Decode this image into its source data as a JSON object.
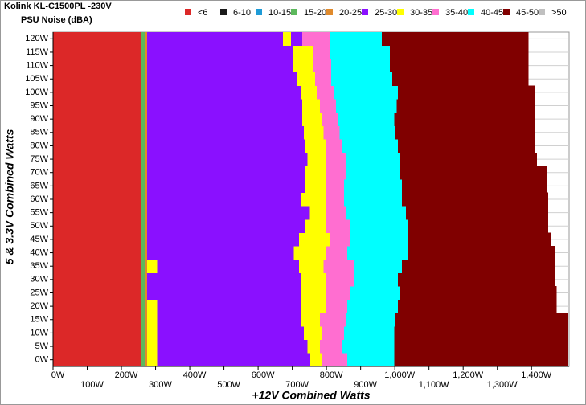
{
  "chart_data": {
    "type": "heatmap",
    "title": "Kolink KL-C1500PL -230V",
    "subtitle": "PSU Noise (dBA)",
    "xlabel": "+12V Combined Watts",
    "ylabel": "5 & 3.3V Combined Watts",
    "legend": [
      {
        "name": "<6",
        "color": "#dc2828"
      },
      {
        "name": "6-10",
        "color": "#1a1a1a"
      },
      {
        "name": "10-15",
        "color": "#1e9bd7"
      },
      {
        "name": "15-20",
        "color": "#5cb85c"
      },
      {
        "name": "20-25",
        "color": "#e08a2c"
      },
      {
        "name": "25-30",
        "color": "#8a10ff"
      },
      {
        "name": "30-35",
        "color": "#ffff00"
      },
      {
        "name": "35-40",
        "color": "#ff6ed0"
      },
      {
        "name": "40-45",
        "color": "#00ffff"
      },
      {
        "name": "45-50",
        "color": "#800000"
      },
      {
        "name": ">50",
        "color": "#c0c0c0"
      }
    ],
    "xlim": [
      0,
      1510
    ],
    "xticks": [
      {
        "value": 0,
        "label": "0W"
      },
      {
        "value": 100,
        "label": "100W"
      },
      {
        "value": 200,
        "label": "200W"
      },
      {
        "value": 300,
        "label": "300W"
      },
      {
        "value": 400,
        "label": "400W"
      },
      {
        "value": 500,
        "label": "500W"
      },
      {
        "value": 600,
        "label": "600W"
      },
      {
        "value": 700,
        "label": "700W"
      },
      {
        "value": 800,
        "label": "800W"
      },
      {
        "value": 900,
        "label": "900W"
      },
      {
        "value": 1000,
        "label": "1,000W"
      },
      {
        "value": 1100,
        "label": "1,100W"
      },
      {
        "value": 1200,
        "label": "1,200W"
      },
      {
        "value": 1300,
        "label": "1,300W"
      },
      {
        "value": 1400,
        "label": "1,400W"
      }
    ],
    "categories": [
      "0W",
      "5W",
      "10W",
      "15W",
      "20W",
      "25W",
      "30W",
      "35W",
      "40W",
      "45W",
      "50W",
      "55W",
      "60W",
      "65W",
      "70W",
      "75W",
      "80W",
      "85W",
      "90W",
      "95W",
      "100W",
      "105W",
      "110W",
      "115W",
      "120W"
    ],
    "rows": [
      {
        "zones": [
          "<6",
          "15-20",
          "20-25",
          "30-35",
          "25-30",
          "30-35",
          "35-40",
          "40-45",
          "45-50"
        ],
        "ends": [
          259,
          271,
          275,
          304,
          753,
          786,
          861,
          998,
          1506
        ]
      },
      {
        "zones": [
          "<6",
          "15-20",
          "20-25",
          "30-35",
          "25-30",
          "30-35",
          "35-40",
          "40-45",
          "45-50"
        ],
        "ends": [
          259,
          271,
          275,
          304,
          744,
          781,
          847,
          998,
          1506
        ]
      },
      {
        "zones": [
          "<6",
          "15-20",
          "20-25",
          "30-35",
          "25-30",
          "30-35",
          "35-40",
          "40-45",
          "45-50"
        ],
        "ends": [
          259,
          271,
          275,
          304,
          734,
          786,
          852,
          998,
          1506
        ]
      },
      {
        "zones": [
          "<6",
          "15-20",
          "20-25",
          "30-35",
          "25-30",
          "30-35",
          "35-40",
          "40-45",
          "45-50"
        ],
        "ends": [
          259,
          271,
          275,
          304,
          727,
          781,
          856,
          1002,
          1506
        ]
      },
      {
        "zones": [
          "<6",
          "15-20",
          "20-25",
          "30-35",
          "25-30",
          "30-35",
          "35-40",
          "40-45",
          "45-50"
        ],
        "ends": [
          259,
          271,
          275,
          304,
          727,
          798,
          861,
          1009,
          1473
        ]
      },
      {
        "zones": [
          "<6",
          "15-20",
          "20-25",
          "25-30",
          "30-35",
          "35-40",
          "40-45",
          "45-50"
        ],
        "ends": [
          259,
          271,
          275,
          727,
          798,
          868,
          1014,
          1473
        ]
      },
      {
        "zones": [
          "<6",
          "15-20",
          "20-25",
          "25-30",
          "30-35",
          "35-40",
          "40-45",
          "45-50"
        ],
        "ends": [
          259,
          271,
          275,
          727,
          798,
          880,
          1009,
          1468
        ]
      },
      {
        "zones": [
          "<6",
          "15-20",
          "20-25",
          "30-35",
          "25-30",
          "30-35",
          "35-40",
          "40-45",
          "45-50"
        ],
        "ends": [
          259,
          271,
          275,
          304,
          720,
          791,
          880,
          1021,
          1468
        ]
      },
      {
        "zones": [
          "<6",
          "15-20",
          "20-25",
          "25-30",
          "30-35",
          "35-40",
          "40-45",
          "45-50"
        ],
        "ends": [
          259,
          271,
          275,
          704,
          798,
          861,
          1040,
          1468
        ]
      },
      {
        "zones": [
          "<6",
          "15-20",
          "20-25",
          "25-30",
          "30-35",
          "35-40",
          "40-45",
          "45-50"
        ],
        "ends": [
          259,
          271,
          275,
          720,
          809,
          868,
          1040,
          1456
        ]
      },
      {
        "zones": [
          "<6",
          "15-20",
          "20-25",
          "25-30",
          "30-35",
          "35-40",
          "40-45",
          "45-50"
        ],
        "ends": [
          259,
          271,
          275,
          739,
          798,
          868,
          1040,
          1449
        ]
      },
      {
        "zones": [
          "<6",
          "15-20",
          "20-25",
          "25-30",
          "30-35",
          "35-40",
          "40-45",
          "45-50"
        ],
        "ends": [
          259,
          271,
          275,
          751,
          798,
          856,
          1033,
          1449
        ]
      },
      {
        "zones": [
          "<6",
          "15-20",
          "20-25",
          "25-30",
          "30-35",
          "35-40",
          "40-45",
          "45-50"
        ],
        "ends": [
          259,
          271,
          275,
          727,
          798,
          852,
          1021,
          1449
        ]
      },
      {
        "zones": [
          "<6",
          "15-20",
          "20-25",
          "25-30",
          "30-35",
          "35-40",
          "40-45",
          "45-50"
        ],
        "ends": [
          259,
          271,
          275,
          739,
          798,
          852,
          1021,
          1445
        ]
      },
      {
        "zones": [
          "<6",
          "15-20",
          "20-25",
          "25-30",
          "30-35",
          "35-40",
          "40-45",
          "45-50"
        ],
        "ends": [
          259,
          271,
          275,
          739,
          798,
          856,
          1014,
          1445
        ]
      },
      {
        "zones": [
          "<6",
          "15-20",
          "20-25",
          "25-30",
          "30-35",
          "35-40",
          "40-45",
          "45-50"
        ],
        "ends": [
          259,
          271,
          275,
          744,
          798,
          856,
          1014,
          1416
        ]
      },
      {
        "zones": [
          "<6",
          "15-20",
          "20-25",
          "25-30",
          "30-35",
          "35-40",
          "40-45",
          "45-50"
        ],
        "ends": [
          259,
          271,
          275,
          739,
          798,
          845,
          1009,
          1409
        ]
      },
      {
        "zones": [
          "<6",
          "15-20",
          "20-25",
          "25-30",
          "30-35",
          "35-40",
          "40-45",
          "45-50"
        ],
        "ends": [
          259,
          271,
          275,
          734,
          791,
          838,
          1002,
          1409
        ]
      },
      {
        "zones": [
          "<6",
          "15-20",
          "20-25",
          "25-30",
          "30-35",
          "35-40",
          "40-45",
          "45-50"
        ],
        "ends": [
          259,
          271,
          275,
          729,
          786,
          833,
          998,
          1409
        ]
      },
      {
        "zones": [
          "<6",
          "15-20",
          "20-25",
          "25-30",
          "30-35",
          "35-40",
          "40-45",
          "45-50"
        ],
        "ends": [
          259,
          271,
          275,
          729,
          781,
          828,
          1005,
          1409
        ]
      },
      {
        "zones": [
          "<6",
          "15-20",
          "20-25",
          "25-30",
          "30-35",
          "35-40",
          "40-45",
          "45-50"
        ],
        "ends": [
          259,
          271,
          275,
          725,
          772,
          821,
          1009,
          1409
        ]
      },
      {
        "zones": [
          "<6",
          "15-20",
          "20-25",
          "25-30",
          "30-35",
          "35-40",
          "40-45",
          "45-50"
        ],
        "ends": [
          259,
          271,
          275,
          715,
          767,
          814,
          993,
          1391
        ]
      },
      {
        "zones": [
          "<6",
          "15-20",
          "20-25",
          "25-30",
          "30-35",
          "35-40",
          "40-45",
          "45-50"
        ],
        "ends": [
          259,
          271,
          275,
          701,
          762,
          814,
          986,
          1391
        ]
      },
      {
        "zones": [
          "<6",
          "15-20",
          "20-25",
          "25-30",
          "30-35",
          "35-40",
          "40-45",
          "45-50"
        ],
        "ends": [
          259,
          271,
          275,
          701,
          762,
          809,
          986,
          1391
        ]
      },
      {
        "zones": [
          "<6",
          "15-20",
          "20-25",
          "25-30",
          "30-35",
          "25-30",
          "35-40",
          "40-45",
          "45-50"
        ],
        "ends": [
          259,
          271,
          275,
          673,
          696,
          729,
          809,
          962,
          1391
        ]
      }
    ]
  }
}
